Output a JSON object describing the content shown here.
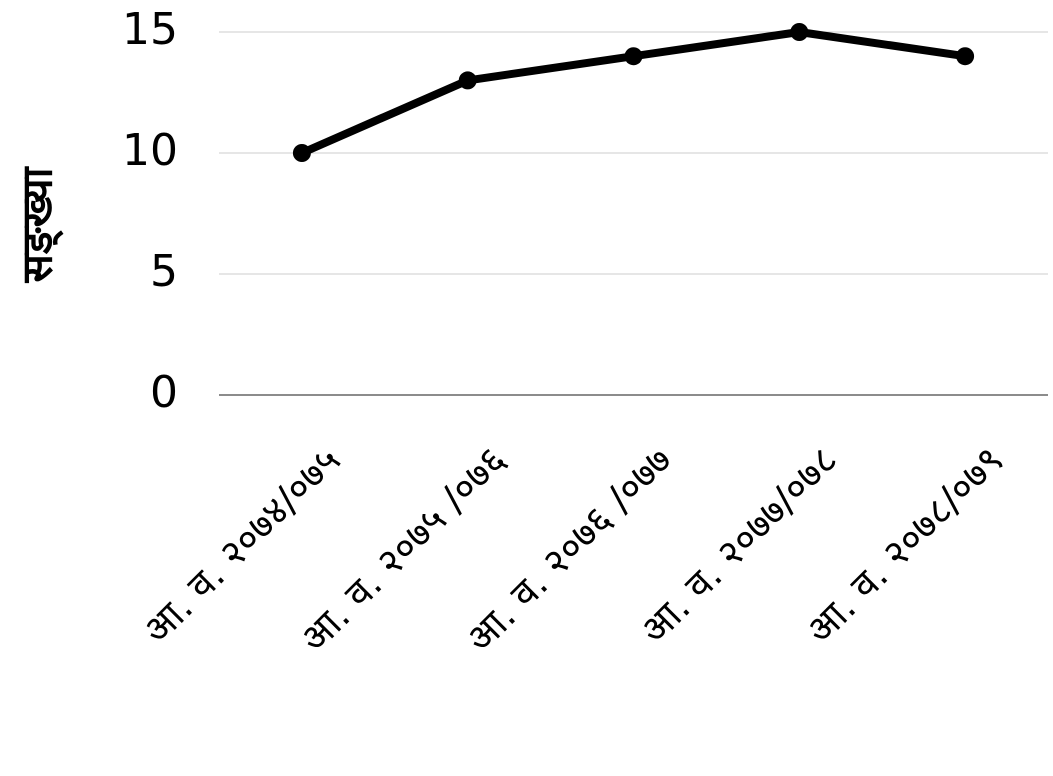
{
  "chart_data": {
    "type": "line",
    "y_label": "सङ्ख्या",
    "categories": [
      "आ. व. २०७४/०७५",
      "आ. व. २०७५ /०७६",
      "आ. व. २०७६ /०७७",
      "आ. व. २०७७/०७८",
      "आ. व. २०७८/०७९"
    ],
    "values": [
      10,
      13,
      14,
      15,
      14
    ],
    "color": "#000000",
    "ylim": [
      0,
      15
    ],
    "yticks": [
      0,
      5,
      10,
      15
    ],
    "grid": true
  }
}
